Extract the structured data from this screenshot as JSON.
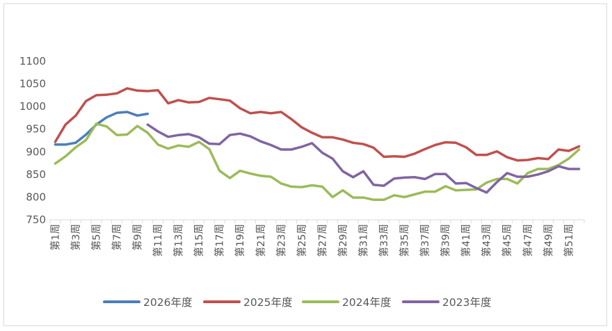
{
  "chart_data": {
    "type": "line",
    "title": "",
    "xlabel": "",
    "ylabel": "",
    "ylim": [
      750,
      1100
    ],
    "yticks": [
      750,
      800,
      850,
      900,
      950,
      1000,
      1050,
      1100
    ],
    "grid": false,
    "legend_position": "bottom",
    "categories": [
      "第1周",
      "第2周",
      "第3周",
      "第4周",
      "第5周",
      "第6周",
      "第7周",
      "第8周",
      "第9周",
      "第10周",
      "第11周",
      "第12周",
      "第13周",
      "第14周",
      "第15周",
      "第16周",
      "第17周",
      "第18周",
      "第19周",
      "第20周",
      "第21周",
      "第22周",
      "第23周",
      "第24周",
      "第25周",
      "第26周",
      "第27周",
      "第28周",
      "第29周",
      "第30周",
      "第31周",
      "第32周",
      "第33周",
      "第34周",
      "第35周",
      "第36周",
      "第37周",
      "第38周",
      "第39周",
      "第40周",
      "第41周",
      "第42周",
      "第43周",
      "第44周",
      "第45周",
      "第46周",
      "第47周",
      "第48周",
      "第49周",
      "第50周",
      "第51周",
      "第52周"
    ],
    "tick_labels": [
      "第1周",
      "第3周",
      "第5周",
      "第7周",
      "第9周",
      "第11周",
      "第13周",
      "第15周",
      "第17周",
      "第19周",
      "第21周",
      "第23周",
      "第25周",
      "第27周",
      "第29周",
      "第31周",
      "第33周",
      "第35周",
      "第37周",
      "第39周",
      "第41周",
      "第43周",
      "第45周",
      "第47周",
      "第49周",
      "第51周"
    ],
    "series": [
      {
        "name": "2026年度",
        "color": "#4a7ebb",
        "values": [
          916,
          916,
          920,
          938,
          960,
          976,
          986,
          988,
          980,
          984,
          null,
          null,
          null,
          null,
          null,
          null,
          null,
          null,
          null,
          null,
          null,
          null,
          null,
          null,
          null,
          null,
          null,
          null,
          null,
          null,
          null,
          null,
          null,
          null,
          null,
          null,
          null,
          null,
          null,
          null,
          null,
          null,
          null,
          null,
          null,
          null,
          null,
          null,
          null,
          null,
          null,
          null
        ]
      },
      {
        "name": "2025年度",
        "color": "#c0504d",
        "values": [
          922,
          960,
          980,
          1012,
          1025,
          1026,
          1029,
          1040,
          1035,
          1034,
          1036,
          1007,
          1014,
          1009,
          1010,
          1019,
          1016,
          1013,
          996,
          985,
          988,
          985,
          988,
          972,
          954,
          942,
          932,
          932,
          927,
          920,
          917,
          909,
          889,
          890,
          889,
          896,
          906,
          915,
          921,
          920,
          910,
          893,
          893,
          901,
          888,
          881,
          882,
          886,
          884,
          905,
          902,
          912
        ]
      },
      {
        "name": "2024年度",
        "color": "#9bbb59",
        "values": [
          874,
          890,
          910,
          926,
          962,
          956,
          937,
          938,
          957,
          942,
          916,
          907,
          914,
          911,
          922,
          906,
          858,
          842,
          858,
          852,
          847,
          845,
          830,
          823,
          822,
          826,
          823,
          800,
          815,
          799,
          799,
          794,
          794,
          804,
          800,
          806,
          812,
          812,
          824,
          815,
          816,
          817,
          832,
          840,
          840,
          830,
          853,
          862,
          862,
          871,
          885,
          905
        ]
      },
      {
        "name": "2023年度",
        "color": "#8064a2",
        "values": [
          null,
          null,
          null,
          null,
          null,
          null,
          null,
          null,
          null,
          960,
          945,
          933,
          937,
          939,
          932,
          918,
          917,
          937,
          940,
          934,
          923,
          915,
          905,
          905,
          911,
          919,
          898,
          885,
          857,
          844,
          857,
          827,
          825,
          841,
          843,
          844,
          840,
          851,
          851,
          830,
          831,
          820,
          810,
          833,
          853,
          845,
          845,
          850,
          857,
          868,
          862,
          862
        ]
      }
    ]
  }
}
